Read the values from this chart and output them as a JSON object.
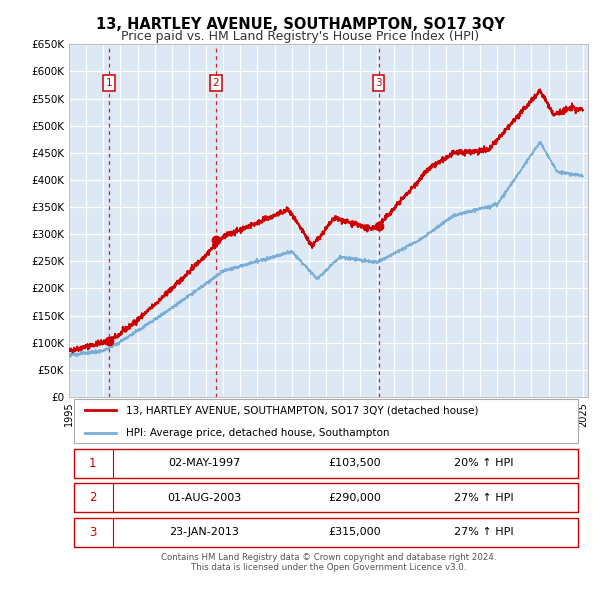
{
  "title": "13, HARTLEY AVENUE, SOUTHAMPTON, SO17 3QY",
  "subtitle": "Price paid vs. HM Land Registry's House Price Index (HPI)",
  "bg_color": "#dce9f5",
  "grid_color": "#ffffff",
  "red_line_color": "#cc0000",
  "blue_line_color": "#7aaed6",
  "ylim": [
    0,
    650000
  ],
  "yticks": [
    0,
    50000,
    100000,
    150000,
    200000,
    250000,
    300000,
    350000,
    400000,
    450000,
    500000,
    550000,
    600000,
    650000
  ],
  "xmin": 1995.0,
  "xmax": 2025.3,
  "xticks": [
    1995,
    1996,
    1997,
    1998,
    1999,
    2000,
    2001,
    2002,
    2003,
    2004,
    2005,
    2006,
    2007,
    2008,
    2009,
    2010,
    2011,
    2012,
    2013,
    2014,
    2015,
    2016,
    2017,
    2018,
    2019,
    2020,
    2021,
    2022,
    2023,
    2024,
    2025
  ],
  "sale_points": [
    {
      "label": "1",
      "date_num": 1997.34,
      "price": 103500
    },
    {
      "label": "2",
      "date_num": 2003.58,
      "price": 290000
    },
    {
      "label": "3",
      "date_num": 2013.07,
      "price": 315000
    }
  ],
  "legend_entries": [
    "13, HARTLEY AVENUE, SOUTHAMPTON, SO17 3QY (detached house)",
    "HPI: Average price, detached house, Southampton"
  ],
  "table_rows": [
    {
      "num": "1",
      "date": "02-MAY-1997",
      "price": "£103,500",
      "hpi": "20% ↑ HPI"
    },
    {
      "num": "2",
      "date": "01-AUG-2003",
      "price": "£290,000",
      "hpi": "27% ↑ HPI"
    },
    {
      "num": "3",
      "date": "23-JAN-2013",
      "price": "£315,000",
      "hpi": "27% ↑ HPI"
    }
  ],
  "footer_text": "Contains HM Land Registry data © Crown copyright and database right 2024.\nThis data is licensed under the Open Government Licence v3.0.",
  "title_fontsize": 10.5,
  "subtitle_fontsize": 9.0
}
